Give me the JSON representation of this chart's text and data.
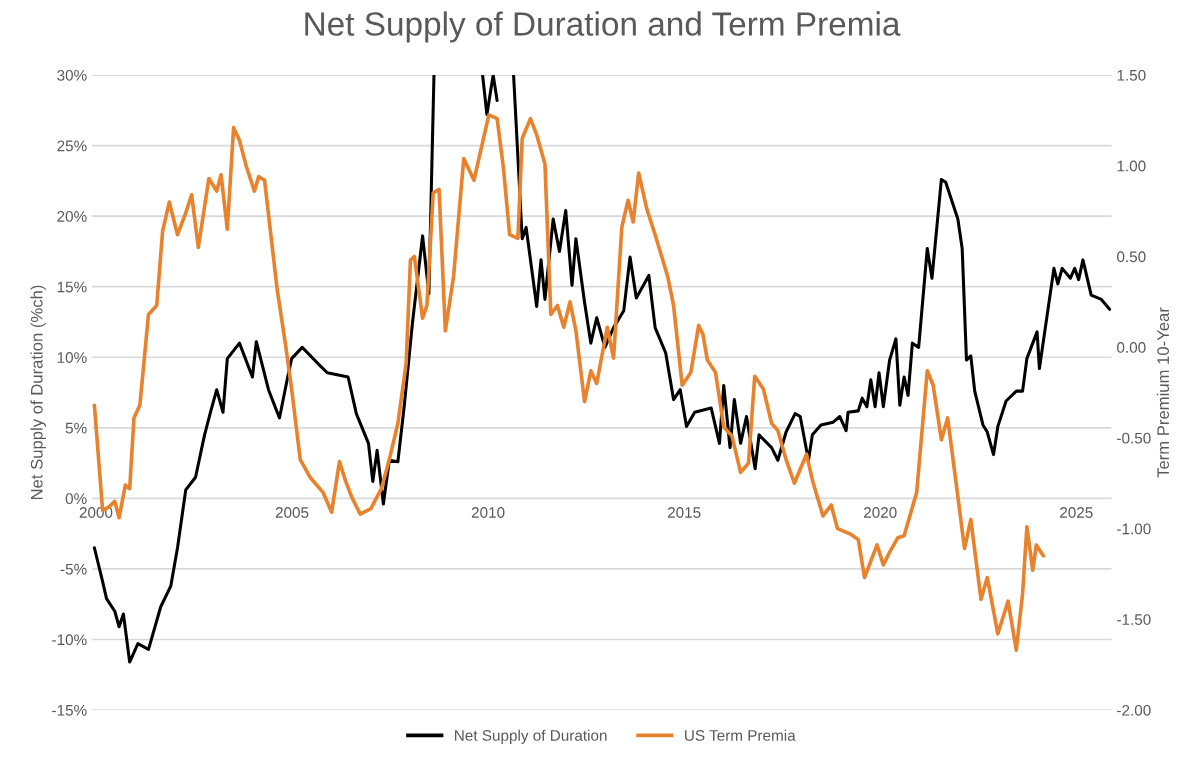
{
  "chart_data": {
    "type": "line",
    "title": "Net Supply of Duration and Term Premia",
    "ylabel": "Net Supply of Duration (%ch)",
    "y2label": "Term Premium 10-Year",
    "xlim": [
      1999.9,
      2025.9
    ],
    "xticks": [
      2000,
      2005,
      2010,
      2015,
      2020,
      2025
    ],
    "ylim": [
      -15,
      30
    ],
    "yticks": [
      {
        "value": -15,
        "label": "-15%"
      },
      {
        "value": -10,
        "label": "-10%"
      },
      {
        "value": -5,
        "label": "-5%"
      },
      {
        "value": 0,
        "label": "0%"
      },
      {
        "value": 5,
        "label": "5%"
      },
      {
        "value": 10,
        "label": "10%"
      },
      {
        "value": 15,
        "label": "15%"
      },
      {
        "value": 20,
        "label": "20%"
      },
      {
        "value": 25,
        "label": "25%"
      },
      {
        "value": 30,
        "label": "30%"
      }
    ],
    "y2lim": [
      -2.0,
      1.5
    ],
    "y2ticks": [
      {
        "value": -2.0,
        "label": "-2.00"
      },
      {
        "value": -1.5,
        "label": "-1.50"
      },
      {
        "value": -1.0,
        "label": "-1.00"
      },
      {
        "value": -0.5,
        "label": "-0.50"
      },
      {
        "value": 0.0,
        "label": "0.00"
      },
      {
        "value": 0.5,
        "label": "0.50"
      },
      {
        "value": 1.0,
        "label": "1.00"
      },
      {
        "value": 1.5,
        "label": "1.50"
      }
    ],
    "grid": "y",
    "legend": "bottom",
    "marker": "none",
    "line_style": "solid",
    "series": [
      {
        "name": "Net Supply of Duration",
        "color": "#000000",
        "x": [
          1999.96,
          2000.17,
          2000.27,
          2000.48,
          2000.59,
          2000.7,
          2000.86,
          2001.07,
          2001.34,
          2001.65,
          2001.91,
          2002.08,
          2002.29,
          2002.54,
          2002.77,
          2002.93,
          2003.08,
          2003.24,
          2003.35,
          2003.66,
          2003.99,
          2004.09,
          2004.4,
          2004.68,
          2004.89,
          2004.99,
          2005.26,
          2005.68,
          2005.9,
          2006.43,
          2006.64,
          2006.95,
          2007.06,
          2007.17,
          2007.33,
          2007.48,
          2007.7,
          2007.86,
          2008.07,
          2008.33,
          2008.49,
          2008.62,
          2009.2,
          2009.86,
          2009.97,
          2010.13,
          2010.23,
          2010.4,
          2010.65,
          2010.87,
          2010.97,
          2011.24,
          2011.35,
          2011.45,
          2011.66,
          2011.82,
          2011.98,
          2012.14,
          2012.24,
          2012.46,
          2012.62,
          2012.77,
          2012.98,
          2013.2,
          2013.46,
          2013.62,
          2013.78,
          2014.1,
          2014.26,
          2014.53,
          2014.73,
          2014.9,
          2015.06,
          2015.27,
          2015.69,
          2015.9,
          2016.01,
          2016.17,
          2016.28,
          2016.44,
          2016.59,
          2016.81,
          2016.91,
          2017.23,
          2017.39,
          2017.6,
          2017.83,
          2017.96,
          2018.17,
          2018.27,
          2018.49,
          2018.8,
          2018.97,
          2019.13,
          2019.18,
          2019.44,
          2019.54,
          2019.66,
          2019.76,
          2019.87,
          2019.97,
          2020.08,
          2020.24,
          2020.4,
          2020.5,
          2020.61,
          2020.71,
          2020.82,
          2020.98,
          2021.2,
          2021.32,
          2021.56,
          2021.67,
          2021.98,
          2022.09,
          2022.2,
          2022.31,
          2022.41,
          2022.62,
          2022.73,
          2022.89,
          2023.0,
          2023.21,
          2023.47,
          2023.63,
          2023.74,
          2024.0,
          2024.06,
          2024.43,
          2024.53,
          2024.64,
          2024.85,
          2024.96,
          2025.06,
          2025.17,
          2025.38,
          2025.64,
          2025.85
        ],
        "values": [
          -3.5,
          -5.9,
          -7.1,
          -8.0,
          -9.1,
          -8.2,
          -11.6,
          -10.3,
          -10.7,
          -7.7,
          -6.2,
          -3.5,
          0.6,
          1.5,
          4.5,
          6.2,
          7.7,
          6.1,
          9.9,
          11.0,
          8.6,
          11.1,
          7.7,
          5.7,
          8.6,
          9.9,
          10.7,
          9.5,
          8.9,
          8.6,
          6.0,
          3.9,
          1.2,
          3.4,
          -0.4,
          2.7,
          2.6,
          6.5,
          12.4,
          18.6,
          14.5,
          30,
          null,
          30,
          27.2,
          30,
          28.2,
          null,
          30,
          18.4,
          19.2,
          13.6,
          16.9,
          14.1,
          19.8,
          17.5,
          20.4,
          15.1,
          18.4,
          13.9,
          11.0,
          12.8,
          10.7,
          12.1,
          13.3,
          17.1,
          14.2,
          15.8,
          12.1,
          10.3,
          7.0,
          7.7,
          5.1,
          6.1,
          6.4,
          3.9,
          8.0,
          3.6,
          7.0,
          3.9,
          5.8,
          2.1,
          4.5,
          3.6,
          2.7,
          4.7,
          6.0,
          5.8,
          2.7,
          4.5,
          5.2,
          5.4,
          5.8,
          4.8,
          6.1,
          6.2,
          7.1,
          6.5,
          8.4,
          6.5,
          8.9,
          6.5,
          9.8,
          11.3,
          6.6,
          8.6,
          7.3,
          11.0,
          10.7,
          17.7,
          15.6,
          22.6,
          22.4,
          19.8,
          17.7,
          9.8,
          10.1,
          7.6,
          5.2,
          4.7,
          3.1,
          5.1,
          6.9,
          7.6,
          7.6,
          9.9,
          11.8,
          9.2,
          16.3,
          15.2,
          16.3,
          15.6,
          16.3,
          15.5,
          16.9,
          14.4,
          14.1,
          13.4
        ]
      },
      {
        "name": "US Term Premia",
        "color": "#e8822d",
        "axis": "y2",
        "x": [
          1999.96,
          2000.17,
          2000.33,
          2000.48,
          2000.59,
          2000.75,
          2000.86,
          2000.97,
          2001.12,
          2001.34,
          2001.55,
          2001.7,
          2001.87,
          2002.08,
          2002.29,
          2002.44,
          2002.61,
          2002.88,
          2003.08,
          2003.19,
          2003.35,
          2003.51,
          2003.66,
          2003.83,
          2004.04,
          2004.15,
          2004.3,
          2004.46,
          2004.62,
          2004.83,
          2004.99,
          2005.21,
          2005.47,
          2005.79,
          2006.01,
          2006.21,
          2006.37,
          2006.53,
          2006.74,
          2007.01,
          2007.28,
          2007.48,
          2007.7,
          2007.91,
          2008.02,
          2008.12,
          2008.33,
          2008.44,
          2008.6,
          2008.75,
          2008.91,
          2009.12,
          2009.38,
          2009.64,
          2010.02,
          2010.23,
          2010.39,
          2010.55,
          2010.76,
          2010.87,
          2011.08,
          2011.24,
          2011.45,
          2011.6,
          2011.77,
          2011.93,
          2012.09,
          2012.24,
          2012.46,
          2012.62,
          2012.77,
          2013.04,
          2013.2,
          2013.41,
          2013.57,
          2013.7,
          2013.84,
          2014.05,
          2014.26,
          2014.58,
          2014.73,
          2014.95,
          2015.17,
          2015.37,
          2015.48,
          2015.59,
          2015.8,
          2016.01,
          2016.22,
          2016.44,
          2016.64,
          2016.8,
          2017.02,
          2017.23,
          2017.39,
          2017.6,
          2017.81,
          2018.12,
          2018.28,
          2018.54,
          2018.75,
          2018.91,
          2019.24,
          2019.44,
          2019.6,
          2019.92,
          2020.08,
          2020.24,
          2020.45,
          2020.61,
          2020.93,
          2021.2,
          2021.35,
          2021.56,
          2021.72,
          2021.93,
          2022.15,
          2022.31,
          2022.57,
          2022.73,
          2023.0,
          2023.26,
          2023.47,
          2023.63,
          2023.74,
          2023.89,
          2023.98,
          2024.16
        ],
        "values": [
          -0.32,
          -0.9,
          -0.88,
          -0.85,
          -0.94,
          -0.76,
          -0.78,
          -0.39,
          -0.32,
          0.18,
          0.23,
          0.64,
          0.8,
          0.62,
          0.74,
          0.84,
          0.55,
          0.93,
          0.86,
          0.95,
          0.65,
          1.21,
          1.14,
          1.0,
          0.86,
          0.94,
          0.92,
          0.62,
          0.32,
          0.02,
          -0.23,
          -0.62,
          -0.72,
          -0.8,
          -0.91,
          -0.63,
          -0.74,
          -0.83,
          -0.92,
          -0.89,
          -0.78,
          -0.62,
          -0.42,
          -0.09,
          0.48,
          0.5,
          0.16,
          0.23,
          0.85,
          0.87,
          0.09,
          0.39,
          1.04,
          0.92,
          1.28,
          1.26,
          0.99,
          0.62,
          0.6,
          1.15,
          1.26,
          1.17,
          1.01,
          0.18,
          0.23,
          0.11,
          0.25,
          0.09,
          -0.3,
          -0.13,
          -0.2,
          0.11,
          -0.06,
          0.66,
          0.81,
          0.69,
          0.96,
          0.76,
          0.62,
          0.39,
          0.23,
          -0.21,
          -0.14,
          0.12,
          0.07,
          -0.07,
          -0.14,
          -0.44,
          -0.49,
          -0.69,
          -0.64,
          -0.16,
          -0.23,
          -0.42,
          -0.46,
          -0.62,
          -0.75,
          -0.59,
          -0.74,
          -0.93,
          -0.87,
          -1.0,
          -1.03,
          -1.06,
          -1.27,
          -1.09,
          -1.2,
          -1.13,
          -1.05,
          -1.04,
          -0.8,
          -0.13,
          -0.21,
          -0.51,
          -0.39,
          -0.74,
          -1.11,
          -0.95,
          -1.39,
          -1.27,
          -1.58,
          -1.4,
          -1.67,
          -1.36,
          -0.99,
          -1.23,
          -1.09,
          -1.15
        ]
      }
    ]
  }
}
